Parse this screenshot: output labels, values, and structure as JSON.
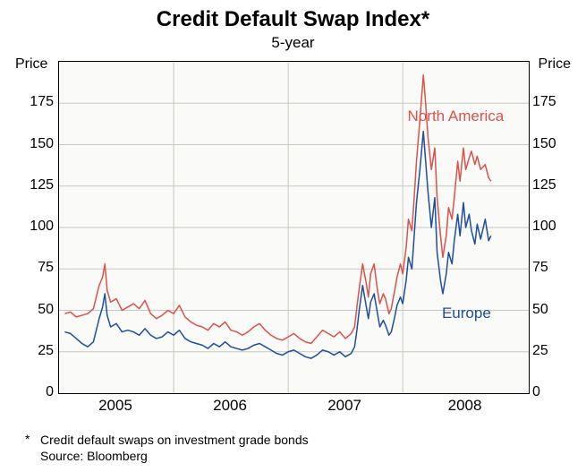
{
  "title": "Credit Default Swap Index*",
  "subtitle": "5-year",
  "axis_label_left": "Price",
  "axis_label_right": "Price",
  "footnote_marker": "*",
  "footnote": "Credit default swaps on investment grade bonds",
  "source": "Source: Bloomberg",
  "chart": {
    "type": "line",
    "background_color": "#fafaf8",
    "border_color": "#000000",
    "grid_color": "#c8c8c0",
    "ylim": [
      0,
      200
    ],
    "yticks": [
      0,
      25,
      50,
      75,
      100,
      125,
      150,
      175
    ],
    "xlim": [
      2004.5,
      2008.6
    ],
    "xticks": [
      2005,
      2006,
      2007,
      2008
    ],
    "xtick_boundaries": [
      2004.5,
      2005.5,
      2006.5,
      2007.5,
      2008.6
    ],
    "label_fontsize": 16,
    "tick_fontsize": 16,
    "line_width": 1.5,
    "series": [
      {
        "name": "North America",
        "label": "North America",
        "color": "#d9534a",
        "label_pos": {
          "x": 2007.55,
          "y": 172
        },
        "data": [
          [
            2004.55,
            48
          ],
          [
            2004.6,
            49
          ],
          [
            2004.65,
            46
          ],
          [
            2004.7,
            47
          ],
          [
            2004.75,
            48
          ],
          [
            2004.8,
            51
          ],
          [
            2004.85,
            65
          ],
          [
            2004.88,
            70
          ],
          [
            2004.9,
            78
          ],
          [
            2004.92,
            62
          ],
          [
            2004.95,
            55
          ],
          [
            2005.0,
            57
          ],
          [
            2005.05,
            50
          ],
          [
            2005.1,
            52
          ],
          [
            2005.15,
            54
          ],
          [
            2005.2,
            51
          ],
          [
            2005.25,
            56
          ],
          [
            2005.3,
            48
          ],
          [
            2005.35,
            45
          ],
          [
            2005.4,
            47
          ],
          [
            2005.45,
            50
          ],
          [
            2005.5,
            48
          ],
          [
            2005.55,
            53
          ],
          [
            2005.6,
            46
          ],
          [
            2005.65,
            43
          ],
          [
            2005.7,
            41
          ],
          [
            2005.75,
            40
          ],
          [
            2005.8,
            38
          ],
          [
            2005.85,
            42
          ],
          [
            2005.9,
            40
          ],
          [
            2005.95,
            43
          ],
          [
            2006.0,
            38
          ],
          [
            2006.05,
            37
          ],
          [
            2006.1,
            35
          ],
          [
            2006.15,
            37
          ],
          [
            2006.2,
            40
          ],
          [
            2006.25,
            42
          ],
          [
            2006.3,
            38
          ],
          [
            2006.35,
            35
          ],
          [
            2006.4,
            33
          ],
          [
            2006.45,
            32
          ],
          [
            2006.5,
            34
          ],
          [
            2006.55,
            36
          ],
          [
            2006.6,
            33
          ],
          [
            2006.65,
            31
          ],
          [
            2006.7,
            30
          ],
          [
            2006.75,
            34
          ],
          [
            2006.8,
            38
          ],
          [
            2006.85,
            36
          ],
          [
            2006.9,
            34
          ],
          [
            2006.95,
            37
          ],
          [
            2007.0,
            33
          ],
          [
            2007.05,
            36
          ],
          [
            2007.08,
            40
          ],
          [
            2007.1,
            52
          ],
          [
            2007.12,
            63
          ],
          [
            2007.15,
            78
          ],
          [
            2007.18,
            67
          ],
          [
            2007.2,
            58
          ],
          [
            2007.22,
            72
          ],
          [
            2007.25,
            78
          ],
          [
            2007.28,
            62
          ],
          [
            2007.3,
            54
          ],
          [
            2007.33,
            60
          ],
          [
            2007.35,
            57
          ],
          [
            2007.38,
            48
          ],
          [
            2007.4,
            51
          ],
          [
            2007.43,
            62
          ],
          [
            2007.45,
            70
          ],
          [
            2007.48,
            78
          ],
          [
            2007.5,
            72
          ],
          [
            2007.53,
            88
          ],
          [
            2007.55,
            105
          ],
          [
            2007.58,
            98
          ],
          [
            2007.6,
            118
          ],
          [
            2007.62,
            140
          ],
          [
            2007.65,
            165
          ],
          [
            2007.68,
            192
          ],
          [
            2007.7,
            175
          ],
          [
            2007.72,
            155
          ],
          [
            2007.75,
            135
          ],
          [
            2007.78,
            148
          ],
          [
            2007.8,
            118
          ],
          [
            2007.83,
            95
          ],
          [
            2007.85,
            82
          ],
          [
            2007.88,
            95
          ],
          [
            2007.9,
            112
          ],
          [
            2007.93,
            105
          ],
          [
            2007.95,
            118
          ],
          [
            2007.98,
            140
          ],
          [
            2008.0,
            128
          ],
          [
            2008.03,
            148
          ],
          [
            2008.05,
            135
          ],
          [
            2008.08,
            142
          ],
          [
            2008.1,
            146
          ],
          [
            2008.13,
            138
          ],
          [
            2008.15,
            143
          ],
          [
            2008.18,
            135
          ],
          [
            2008.22,
            138
          ],
          [
            2008.25,
            130
          ],
          [
            2008.27,
            128
          ]
        ]
      },
      {
        "name": "Europe",
        "label": "Europe",
        "color": "#1e4e9c",
        "label_pos": {
          "x": 2007.85,
          "y": 53
        },
        "data": [
          [
            2004.55,
            37
          ],
          [
            2004.6,
            36
          ],
          [
            2004.65,
            33
          ],
          [
            2004.7,
            30
          ],
          [
            2004.75,
            28
          ],
          [
            2004.8,
            31
          ],
          [
            2004.85,
            45
          ],
          [
            2004.88,
            52
          ],
          [
            2004.9,
            60
          ],
          [
            2004.92,
            47
          ],
          [
            2004.95,
            40
          ],
          [
            2005.0,
            42
          ],
          [
            2005.05,
            37
          ],
          [
            2005.1,
            38
          ],
          [
            2005.15,
            37
          ],
          [
            2005.2,
            35
          ],
          [
            2005.25,
            39
          ],
          [
            2005.3,
            35
          ],
          [
            2005.35,
            33
          ],
          [
            2005.4,
            34
          ],
          [
            2005.45,
            37
          ],
          [
            2005.5,
            35
          ],
          [
            2005.55,
            38
          ],
          [
            2005.6,
            33
          ],
          [
            2005.65,
            31
          ],
          [
            2005.7,
            30
          ],
          [
            2005.75,
            29
          ],
          [
            2005.8,
            27
          ],
          [
            2005.85,
            30
          ],
          [
            2005.9,
            28
          ],
          [
            2005.95,
            31
          ],
          [
            2006.0,
            28
          ],
          [
            2006.05,
            27
          ],
          [
            2006.1,
            26
          ],
          [
            2006.15,
            27
          ],
          [
            2006.2,
            29
          ],
          [
            2006.25,
            30
          ],
          [
            2006.3,
            28
          ],
          [
            2006.35,
            26
          ],
          [
            2006.4,
            24
          ],
          [
            2006.45,
            23
          ],
          [
            2006.5,
            25
          ],
          [
            2006.55,
            26
          ],
          [
            2006.6,
            24
          ],
          [
            2006.65,
            22
          ],
          [
            2006.7,
            21
          ],
          [
            2006.75,
            23
          ],
          [
            2006.8,
            26
          ],
          [
            2006.85,
            25
          ],
          [
            2006.9,
            23
          ],
          [
            2006.95,
            25
          ],
          [
            2007.0,
            22
          ],
          [
            2007.05,
            24
          ],
          [
            2007.08,
            28
          ],
          [
            2007.1,
            38
          ],
          [
            2007.12,
            50
          ],
          [
            2007.15,
            65
          ],
          [
            2007.18,
            53
          ],
          [
            2007.2,
            45
          ],
          [
            2007.22,
            55
          ],
          [
            2007.25,
            60
          ],
          [
            2007.28,
            48
          ],
          [
            2007.3,
            40
          ],
          [
            2007.33,
            44
          ],
          [
            2007.35,
            41
          ],
          [
            2007.38,
            35
          ],
          [
            2007.4,
            37
          ],
          [
            2007.43,
            46
          ],
          [
            2007.45,
            53
          ],
          [
            2007.48,
            58
          ],
          [
            2007.5,
            54
          ],
          [
            2007.53,
            68
          ],
          [
            2007.55,
            82
          ],
          [
            2007.58,
            75
          ],
          [
            2007.6,
            95
          ],
          [
            2007.62,
            115
          ],
          [
            2007.65,
            135
          ],
          [
            2007.68,
            158
          ],
          [
            2007.7,
            140
          ],
          [
            2007.72,
            122
          ],
          [
            2007.75,
            100
          ],
          [
            2007.78,
            118
          ],
          [
            2007.8,
            85
          ],
          [
            2007.83,
            68
          ],
          [
            2007.85,
            60
          ],
          [
            2007.88,
            72
          ],
          [
            2007.9,
            85
          ],
          [
            2007.93,
            78
          ],
          [
            2007.95,
            92
          ],
          [
            2007.98,
            108
          ],
          [
            2008.0,
            95
          ],
          [
            2008.03,
            115
          ],
          [
            2008.05,
            100
          ],
          [
            2008.08,
            108
          ],
          [
            2008.1,
            98
          ],
          [
            2008.13,
            90
          ],
          [
            2008.15,
            102
          ],
          [
            2008.18,
            93
          ],
          [
            2008.22,
            105
          ],
          [
            2008.25,
            92
          ],
          [
            2008.27,
            95
          ]
        ]
      }
    ]
  }
}
